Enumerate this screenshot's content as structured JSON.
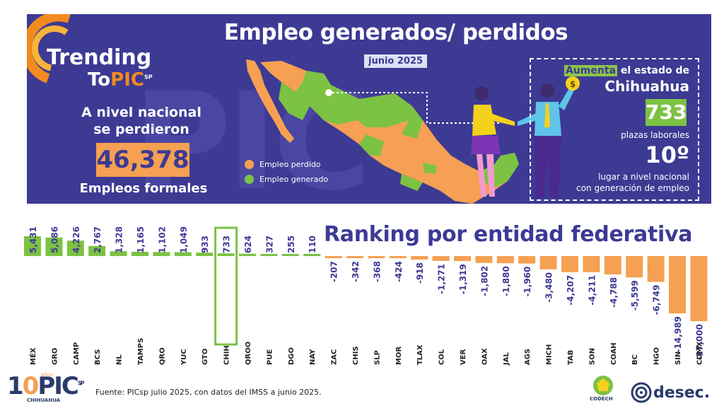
{
  "logo": {
    "line1": "Trending",
    "line2_a": "To",
    "line2_b": "PIC",
    "line2_sup": "SP"
  },
  "header": {
    "title": "Empleo generados/ perdidos",
    "date": "junio 2025"
  },
  "national": {
    "line1": "A nivel nacional",
    "line2": "se perdieron",
    "value": "46,378",
    "line3": "Empleos formales"
  },
  "map_legend": {
    "lost": "Empleo perdido",
    "gained": "Empleo generado"
  },
  "highlight": {
    "word": "Aumenta",
    "rest": " el estado de",
    "state": "Chihuahua",
    "value": "733",
    "unit": "plazas laborales",
    "rank": "10º",
    "rank_text1": "lugar a nivel nacional",
    "rank_text2": "con generación de empleo"
  },
  "colors": {
    "banner": "#3d3a94",
    "positive": "#7cc243",
    "negative": "#f5a052",
    "highlight_border": "#7cc243",
    "text_dark": "#3d3a94"
  },
  "chart_data": {
    "type": "bar",
    "title": "Ranking por entidad federativa",
    "categories": [
      "MÉX",
      "GRO",
      "CAMP",
      "BCS",
      "NL",
      "TAMPS",
      "QRO",
      "YUC",
      "GTO",
      "CHIH",
      "QROO",
      "PUE",
      "DGO",
      "NAY",
      "ZAC",
      "CHIS",
      "SLP",
      "MOR",
      "TLAX",
      "COL",
      "VER",
      "OAX",
      "JAL",
      "AGS",
      "MICH",
      "TAB",
      "SON",
      "COAH",
      "BC",
      "HGO",
      "SIN",
      "CDMX"
    ],
    "values": [
      5431,
      5086,
      4226,
      2767,
      1328,
      1165,
      1102,
      1049,
      933,
      733,
      624,
      327,
      255,
      110,
      -207,
      -342,
      -368,
      -424,
      -918,
      -1271,
      -1319,
      -1802,
      -1880,
      -1960,
      -3480,
      -4207,
      -4211,
      -4788,
      -5599,
      -6749,
      -14989,
      -17000
    ],
    "labels": [
      "5,431",
      "5,086",
      "4,226",
      "2,767",
      "1,328",
      "1,165",
      "1,102",
      "1,049",
      "933",
      "733",
      "624",
      "327",
      "255",
      "110",
      "-207",
      "-342",
      "-368",
      "-424",
      "-918",
      "-1,271",
      "-1,319",
      "-1,802",
      "-1,880",
      "-1,960",
      "-3,480",
      "-4,207",
      "-4,211",
      "-4,788",
      "-5,599",
      "-6,749",
      "-14,989",
      "-17,000"
    ],
    "highlighted": "CHIH"
  },
  "footer": {
    "source": "Fuente: PICsp julio 2025, con datos del IMSS a junio 2025."
  },
  "sponsors": {
    "codech": "CODECH",
    "desec": "desec.",
    "pic": "PIC",
    "pic_sup": "SP",
    "pic_sub": "CHIHUAHUA",
    "pic_years": "años"
  }
}
